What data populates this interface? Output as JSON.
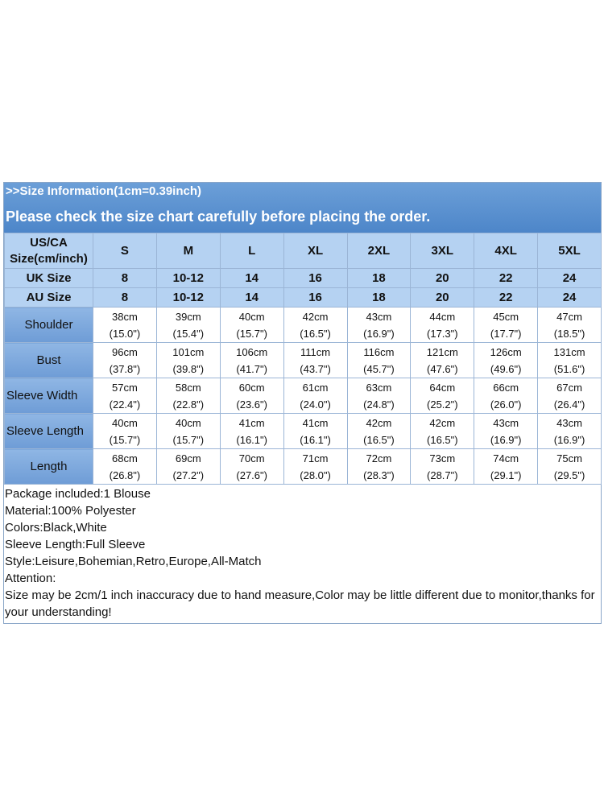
{
  "header": {
    "info": ">>Size Information(1cm=0.39inch)",
    "notice": "Please check the size chart carefully before placing the order."
  },
  "table": {
    "corner_line1": "US/CA",
    "corner_line2": "Size(cm/inch)",
    "sizes": [
      "S",
      "M",
      "L",
      "XL",
      "2XL",
      "3XL",
      "4XL",
      "5XL"
    ],
    "uk_label": "UK Size",
    "uk": [
      "8",
      "10-12",
      "14",
      "16",
      "18",
      "20",
      "22",
      "24"
    ],
    "au_label": "AU Size",
    "au": [
      "8",
      "10-12",
      "14",
      "16",
      "18",
      "20",
      "22",
      "24"
    ],
    "rows": [
      {
        "label": "Shoulder",
        "cm": [
          "38cm",
          "39cm",
          "40cm",
          "42cm",
          "43cm",
          "44cm",
          "45cm",
          "47cm"
        ],
        "inch": [
          "(15.0\")",
          "(15.4\")",
          "(15.7\")",
          "(16.5\")",
          "(16.9\")",
          "(17.3\")",
          "(17.7\")",
          "(18.5\")"
        ]
      },
      {
        "label": "Bust",
        "cm": [
          "96cm",
          "101cm",
          "106cm",
          "111cm",
          "116cm",
          "121cm",
          "126cm",
          "131cm"
        ],
        "inch": [
          "(37.8\")",
          "(39.8\")",
          "(41.7\")",
          "(43.7\")",
          "(45.7\")",
          "(47.6\")",
          "(49.6\")",
          "(51.6\")"
        ]
      },
      {
        "label": "Sleeve Width",
        "cm": [
          "57cm",
          "58cm",
          "60cm",
          "61cm",
          "63cm",
          "64cm",
          "66cm",
          "67cm"
        ],
        "inch": [
          "(22.4\")",
          "(22.8\")",
          "(23.6\")",
          "(24.0\")",
          "(24.8\")",
          "(25.2\")",
          "(26.0\")",
          "(26.4\")"
        ]
      },
      {
        "label": "Sleeve Length",
        "cm": [
          "40cm",
          "40cm",
          "41cm",
          "41cm",
          "42cm",
          "42cm",
          "43cm",
          "43cm"
        ],
        "inch": [
          "(15.7\")",
          "(15.7\")",
          "(16.1\")",
          "(16.1\")",
          "(16.5\")",
          "(16.5\")",
          "(16.9\")",
          "(16.9\")"
        ]
      },
      {
        "label": "Length",
        "cm": [
          "68cm",
          "69cm",
          "70cm",
          "71cm",
          "72cm",
          "73cm",
          "74cm",
          "75cm"
        ],
        "inch": [
          "(26.8\")",
          "(27.2\")",
          "(27.6\")",
          "(28.0\")",
          "(28.3\")",
          "(28.7\")",
          "(29.1\")",
          "(29.5\")"
        ]
      }
    ]
  },
  "notes": [
    "Package included:1 Blouse",
    "Material:100% Polyester",
    "Colors:Black,White",
    "Sleeve Length:Full Sleeve",
    "Style:Leisure,Bohemian,Retro,Europe,All-Match",
    "Attention:",
    "Size may be 2cm/1 inch inaccuracy due to hand measure,Color may be little different due to monitor,thanks for your understanding!"
  ],
  "colors": {
    "banner": "#5a90d0",
    "header_cell": "#b5d2f2",
    "row_label": "#7ea8dc",
    "grid": "#9bb5d6"
  }
}
